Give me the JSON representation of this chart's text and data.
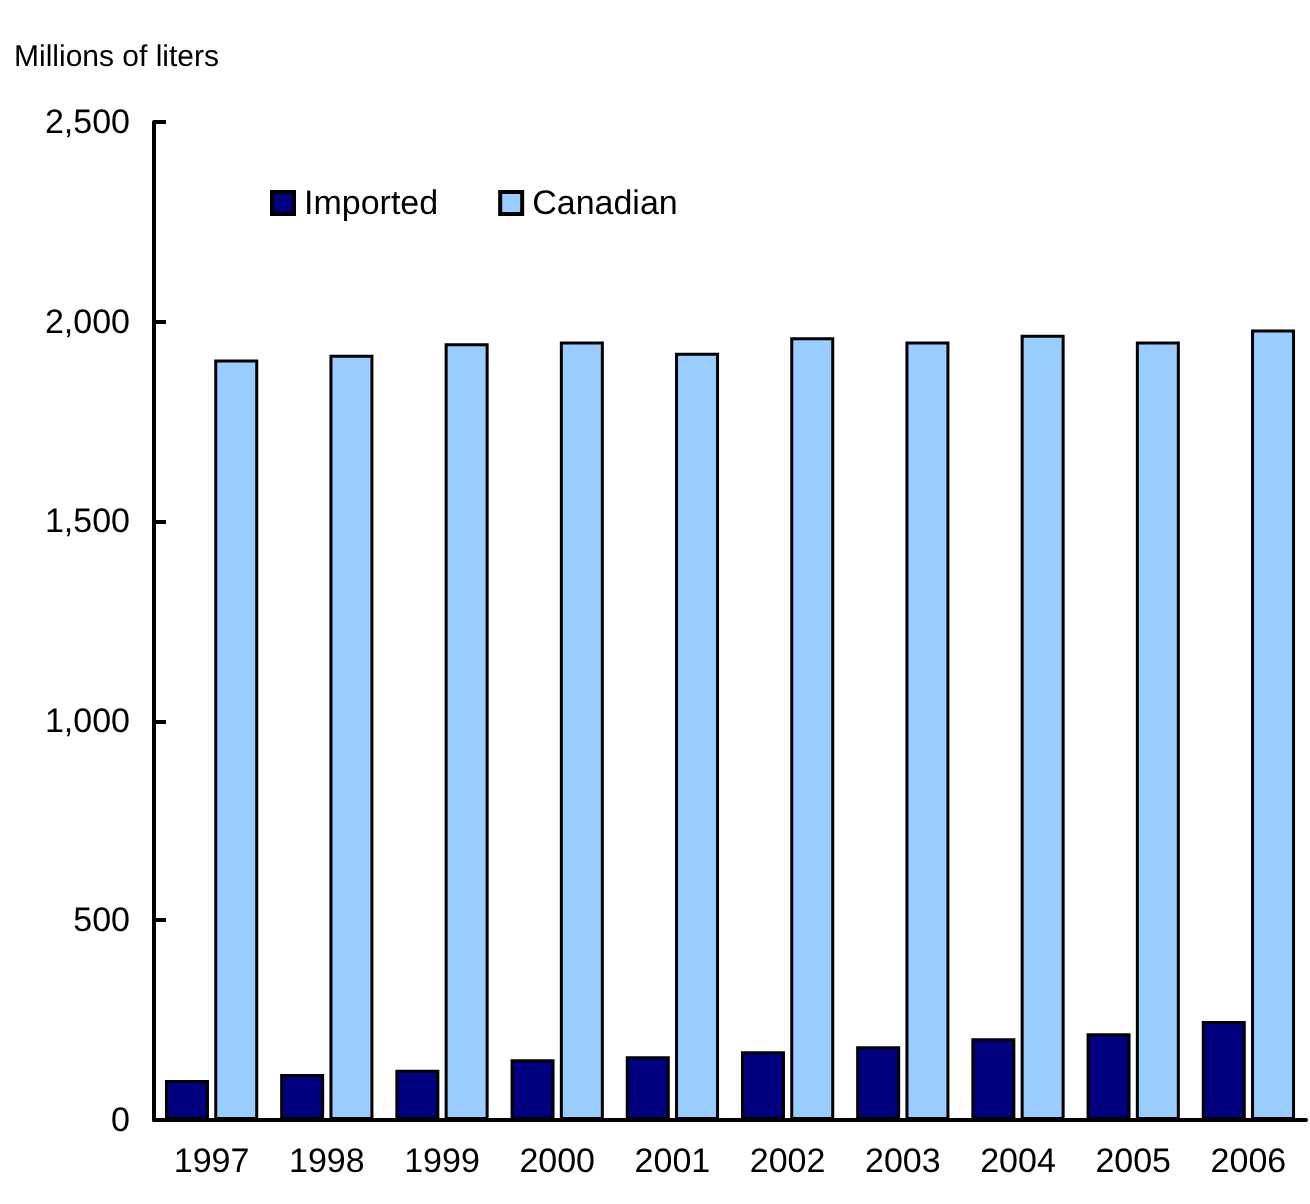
{
  "chart_data": {
    "type": "bar",
    "ylabel": "Millions of liters",
    "categories": [
      "1997",
      "1998",
      "1999",
      "2000",
      "2001",
      "2002",
      "2003",
      "2004",
      "2005",
      "2006"
    ],
    "series": [
      {
        "name": "Imported",
        "color": "#000080",
        "values": [
          100,
          115,
          126,
          152,
          160,
          172,
          185,
          205,
          217,
          248
        ]
      },
      {
        "name": "Canadian",
        "color": "#99ccff",
        "values": [
          1905,
          1917,
          1946,
          1950,
          1922,
          1961,
          1950,
          1967,
          1950,
          1980
        ]
      }
    ],
    "ylim": [
      0,
      2500
    ],
    "yticks": [
      0,
      500,
      {
        "value": 1000,
        "label": "1,000"
      },
      {
        "value": 1500,
        "label": "1,500"
      },
      {
        "value": 2000,
        "label": "2,000"
      },
      {
        "value": 2500,
        "label": "2,500"
      }
    ],
    "grid": false,
    "legend": "top left"
  }
}
